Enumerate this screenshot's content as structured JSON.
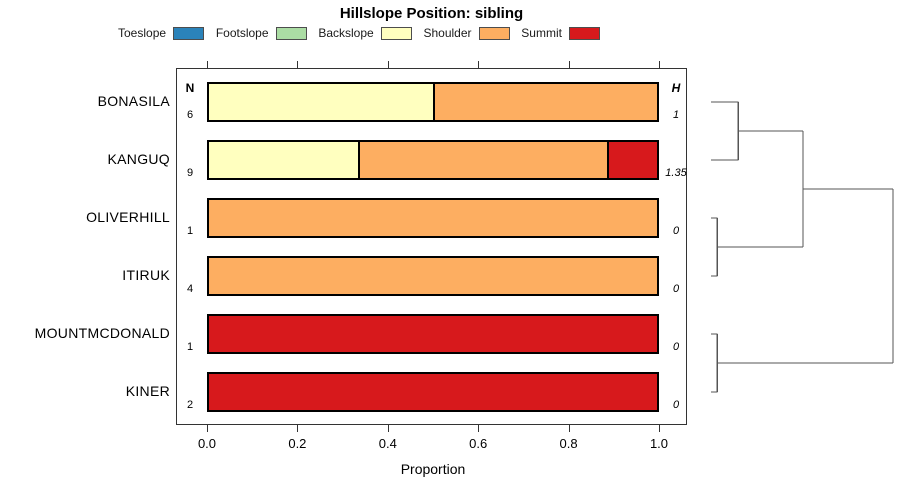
{
  "figure": {
    "title": "Hillslope Position: sibling",
    "xlabel": "Proportion",
    "n_header": "N",
    "h_header": "H"
  },
  "chart_data": {
    "type": "bar",
    "orientation": "horizontal-stacked",
    "title": "Hillslope Position: sibling",
    "xlabel": "Proportion",
    "xlim": [
      0,
      1
    ],
    "x_ticks": [
      "0.0",
      "0.2",
      "0.4",
      "0.6",
      "0.8",
      "1.0"
    ],
    "x_tick_values": [
      0,
      0.2,
      0.4,
      0.6,
      0.8,
      1.0
    ],
    "grid": false,
    "legend_position": "top",
    "categories": [
      "Toeslope",
      "Footslope",
      "Backslope",
      "Shoulder",
      "Summit"
    ],
    "category_colors": {
      "Toeslope": "#2B83BA",
      "Footslope": "#ABDDA4",
      "Backslope": "#FFFFBF",
      "Shoulder": "#FDAE61",
      "Summit": "#D7191C"
    },
    "rows": [
      {
        "label": "BONASILA",
        "n": "6",
        "h": "1",
        "segments": [
          {
            "category": "Backslope",
            "value": 0.5
          },
          {
            "category": "Shoulder",
            "value": 0.5
          }
        ]
      },
      {
        "label": "KANGUQ",
        "n": "9",
        "h": "1.35",
        "segments": [
          {
            "category": "Backslope",
            "value": 0.333
          },
          {
            "category": "Shoulder",
            "value": 0.556
          },
          {
            "category": "Summit",
            "value": 0.111
          }
        ]
      },
      {
        "label": "OLIVERHILL",
        "n": "1",
        "h": "0",
        "segments": [
          {
            "category": "Shoulder",
            "value": 1.0
          }
        ]
      },
      {
        "label": "ITIRUK",
        "n": "4",
        "h": "0",
        "segments": [
          {
            "category": "Shoulder",
            "value": 1.0
          }
        ]
      },
      {
        "label": "MOUNTMCDONALD",
        "n": "1",
        "h": "0",
        "segments": [
          {
            "category": "Summit",
            "value": 1.0
          }
        ]
      },
      {
        "label": "KINER",
        "n": "2",
        "h": "0",
        "segments": [
          {
            "category": "Summit",
            "value": 1.0
          }
        ]
      }
    ],
    "dendrogram": {
      "leaf_order": [
        "BONASILA",
        "KANGUQ",
        "OLIVERHILL",
        "ITIRUK",
        "MOUNTMCDONALD",
        "KINER"
      ],
      "merges": [
        {
          "id": "M0",
          "children": [
            "L0",
            "L1"
          ],
          "height": 0.15
        },
        {
          "id": "M1",
          "children": [
            "L2",
            "L3"
          ],
          "height": 0.035
        },
        {
          "id": "M2",
          "children": [
            "L4",
            "L5"
          ],
          "height": 0.035
        },
        {
          "id": "M3",
          "children": [
            "M0",
            "M1"
          ],
          "height": 0.505
        },
        {
          "id": "M4",
          "children": [
            "M3",
            "M2"
          ],
          "height": 1.0
        }
      ],
      "line_color": "#555555"
    }
  }
}
